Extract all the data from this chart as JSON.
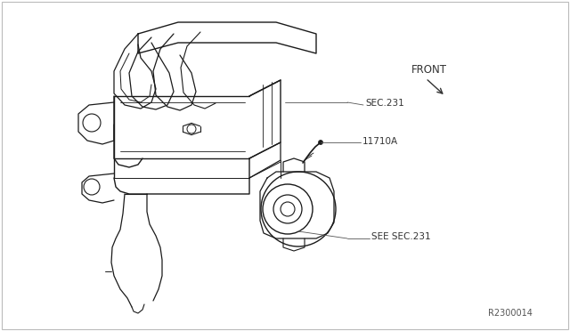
{
  "background_color": "#ffffff",
  "border_color": "#bbbbbb",
  "line_color": "#1a1a1a",
  "label_color": "#333333",
  "leader_color": "#555555",
  "labels": {
    "sec231": "SEC.231",
    "part": "11710A",
    "see_sec231": "SEE SEC.231",
    "front": "FRONT",
    "part_num": "R2300014"
  },
  "figsize": [
    6.4,
    3.72
  ],
  "dpi": 100
}
